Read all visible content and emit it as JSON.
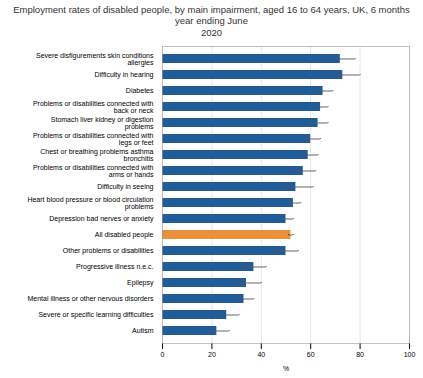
{
  "chart_data": {
    "type": "bar",
    "orientation": "horizontal",
    "title": "Employment rates of disabled people, by main impairment, aged 16 to 64 years, UK, 6 months year ending June\n2020",
    "categories": [
      "Severe disfigurements skin conditions\nallergies",
      "Difficulty in hearing",
      "Diabetes",
      "Problems or disabilities connected with\nback or neck",
      "Stomach liver kidney or digestion\nproblems",
      "Problems or disabilities connected with\nlegs or feet",
      "Chest or breathing problems asthma\nbronchitis",
      "Problems or disabilities connected with\narms or hands",
      "Difficulty in seeing",
      "Heart blood pressure or blood circulation\nproblems",
      "Depression bad nerves or anxiety",
      "All disabled people",
      "Other problems or disabilities",
      "Progressive illness n.e.c.",
      "Epilepsy",
      "Mental illness or other nervous disorders",
      "Severe or specific learning difficulties",
      "Autism"
    ],
    "values": [
      72,
      73,
      65,
      64,
      63,
      60,
      59,
      57,
      54,
      53,
      50,
      52,
      50,
      37,
      34,
      33,
      26,
      22
    ],
    "errors": [
      6,
      7,
      4,
      3,
      4,
      4,
      4,
      5,
      7,
      3,
      3,
      1,
      5,
      5,
      6,
      4,
      5,
      5
    ],
    "colors": [
      "#1F5C99",
      "#1F5C99",
      "#1F5C99",
      "#1F5C99",
      "#1F5C99",
      "#1F5C99",
      "#1F5C99",
      "#1F5C99",
      "#1F5C99",
      "#1F5C99",
      "#1F5C99",
      "#E8903A",
      "#1F5C99",
      "#1F5C99",
      "#1F5C99",
      "#1F5C99",
      "#1F5C99",
      "#1F5C99"
    ],
    "xlabel": "%",
    "xlim": [
      0,
      100
    ],
    "xticks": [
      0,
      20,
      40,
      60,
      80,
      100
    ],
    "grid": true
  }
}
